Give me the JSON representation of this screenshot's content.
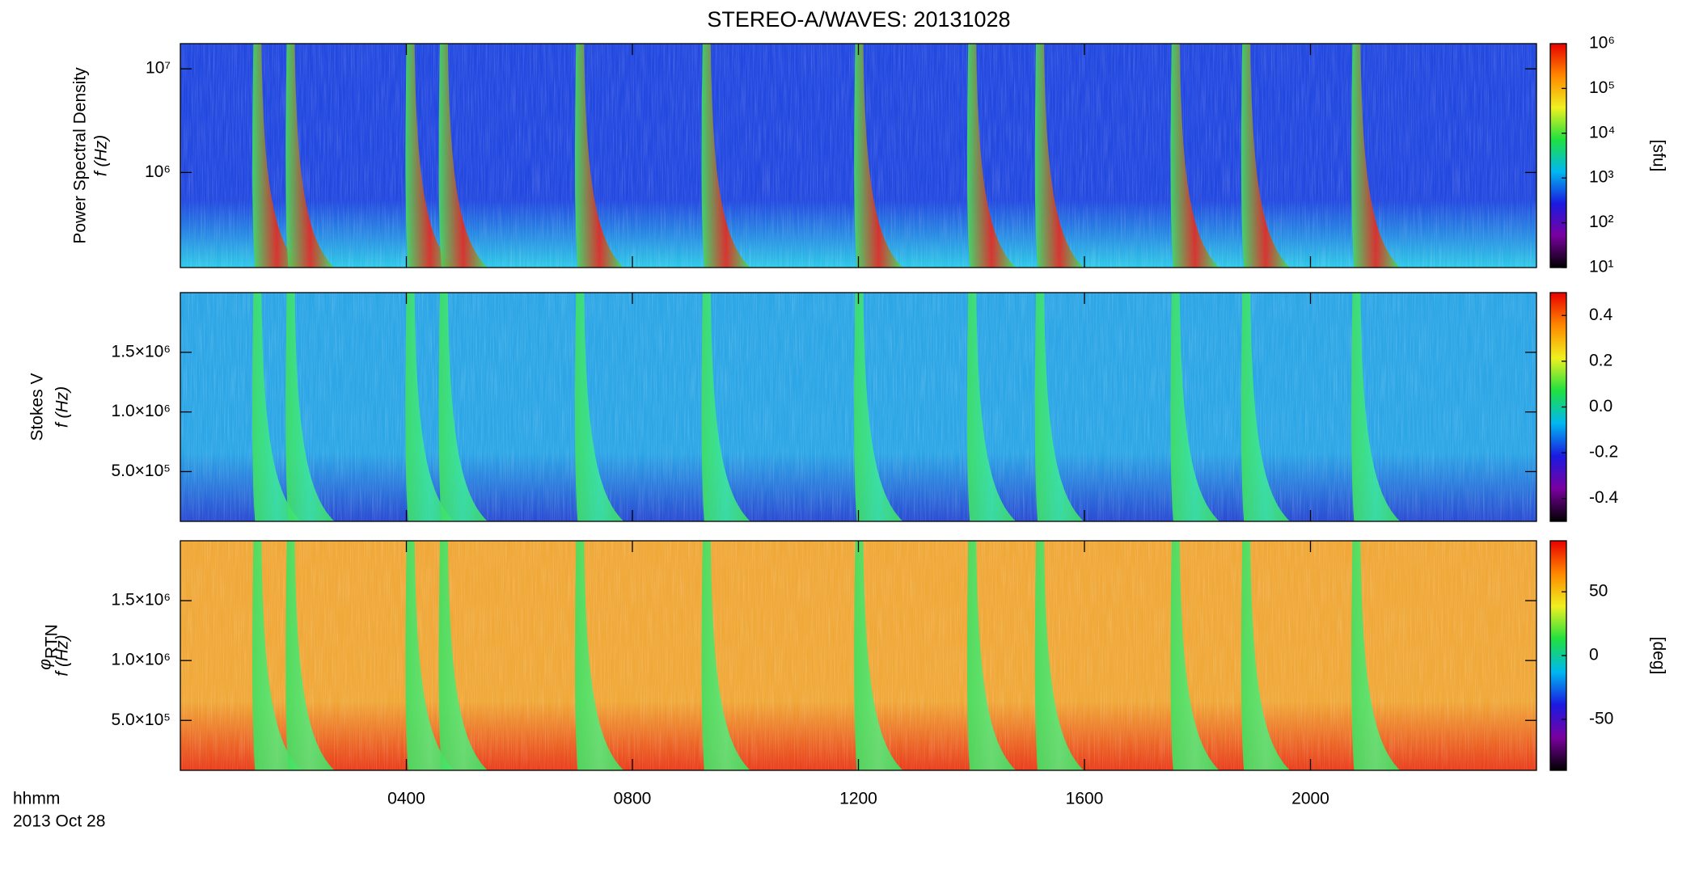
{
  "title": "STEREO-A/WAVES: 20131028",
  "chart_data": [
    {
      "type": "spectrogram",
      "ylabel": "Power Spectral Density",
      "ylabel2": "f (Hz)",
      "ylim": [
        121000,
        17500000
      ],
      "ylog": true,
      "yticks": [
        {
          "value": 1000000,
          "label": "10⁶"
        },
        {
          "value": 10000000,
          "label": "10⁷"
        }
      ],
      "xlim": [
        0,
        24
      ],
      "xticks": [
        {
          "value": 4,
          "label": "0400"
        },
        {
          "value": 8,
          "label": "0800"
        },
        {
          "value": 12,
          "label": "1200"
        },
        {
          "value": 16,
          "label": "1600"
        },
        {
          "value": 20,
          "label": "2000"
        }
      ],
      "background_color": "#2248e0",
      "floor_color": "#30d8e8",
      "burst_color": "#e8281e",
      "bursts": [
        1.35,
        1.94,
        4.06,
        4.65,
        7.06,
        9.3,
        12.0,
        14.0,
        15.2,
        17.6,
        18.85,
        20.8
      ],
      "colorbar": {
        "lim": [
          10,
          1000000
        ],
        "log": true,
        "label": "[sfu]",
        "ticks": [
          {
            "value": 10,
            "label": "10¹"
          },
          {
            "value": 100,
            "label": "10²"
          },
          {
            "value": 1000,
            "label": "10³"
          },
          {
            "value": 10000,
            "label": "10⁴"
          },
          {
            "value": 100000,
            "label": "10⁵"
          },
          {
            "value": 1000000,
            "label": "10⁶"
          }
        ]
      }
    },
    {
      "type": "spectrogram",
      "ylabel": "Stokes V",
      "ylabel2": "f (Hz)",
      "ylim": [
        83000,
        2000000
      ],
      "ylog": false,
      "yticks": [
        {
          "value": 500000,
          "label": "5.0×10⁵"
        },
        {
          "value": 1000000,
          "label": "1.0×10⁶"
        },
        {
          "value": 1500000,
          "label": "1.5×10⁶"
        }
      ],
      "xlim": [
        0,
        24
      ],
      "xticks": [
        {
          "value": 4,
          "label": "0400"
        },
        {
          "value": 8,
          "label": "0800"
        },
        {
          "value": 12,
          "label": "1200"
        },
        {
          "value": 16,
          "label": "1600"
        },
        {
          "value": 20,
          "label": "2000"
        }
      ],
      "background_color": "#2ca6e6",
      "floor_color": "#2a40d0",
      "burst_color": "#3ce8a0",
      "bursts": [
        1.35,
        1.94,
        4.06,
        4.65,
        7.06,
        9.3,
        12.0,
        14.0,
        15.2,
        17.6,
        18.85,
        20.8
      ],
      "colorbar": {
        "lim": [
          -0.5,
          0.5
        ],
        "log": false,
        "label": null,
        "ticks": [
          -0.4,
          -0.2,
          {
            "value": 0,
            "label": "0.0"
          },
          0.2,
          0.4
        ]
      }
    },
    {
      "type": "spectrogram",
      "ylabel_symbol": "φ",
      "ylabel_subscript": "RTN",
      "ylabel2": "f (Hz)",
      "ylim": [
        83000,
        2000000
      ],
      "ylog": false,
      "yticks": [
        {
          "value": 500000,
          "label": "5.0×10⁵"
        },
        {
          "value": 1000000,
          "label": "1.0×10⁶"
        },
        {
          "value": 1500000,
          "label": "1.5×10⁶"
        }
      ],
      "xlim": [
        0,
        24
      ],
      "xticks": [
        {
          "value": 4,
          "label": "0400"
        },
        {
          "value": 8,
          "label": "0800"
        },
        {
          "value": 12,
          "label": "1200"
        },
        {
          "value": 16,
          "label": "1600"
        },
        {
          "value": 20,
          "label": "2000"
        }
      ],
      "xlabel": "hhmm",
      "xlabel_date": "2013 Oct 28",
      "background_color": "#f0a838",
      "floor_color": "#e83018",
      "burst_color": "#5ce87a",
      "bursts": [
        1.35,
        1.94,
        4.06,
        4.65,
        7.06,
        9.3,
        12.0,
        14.0,
        15.2,
        17.6,
        18.85,
        20.8
      ],
      "colorbar": {
        "lim": [
          -90,
          90
        ],
        "log": false,
        "label": "[deg]",
        "ticks": [
          -50,
          0,
          50
        ]
      }
    }
  ],
  "colormap": [
    "#000000",
    "#7a00a0",
    "#1a1ae0",
    "#00b8f0",
    "#20e040",
    "#f0f020",
    "#ff8800",
    "#e80000"
  ]
}
